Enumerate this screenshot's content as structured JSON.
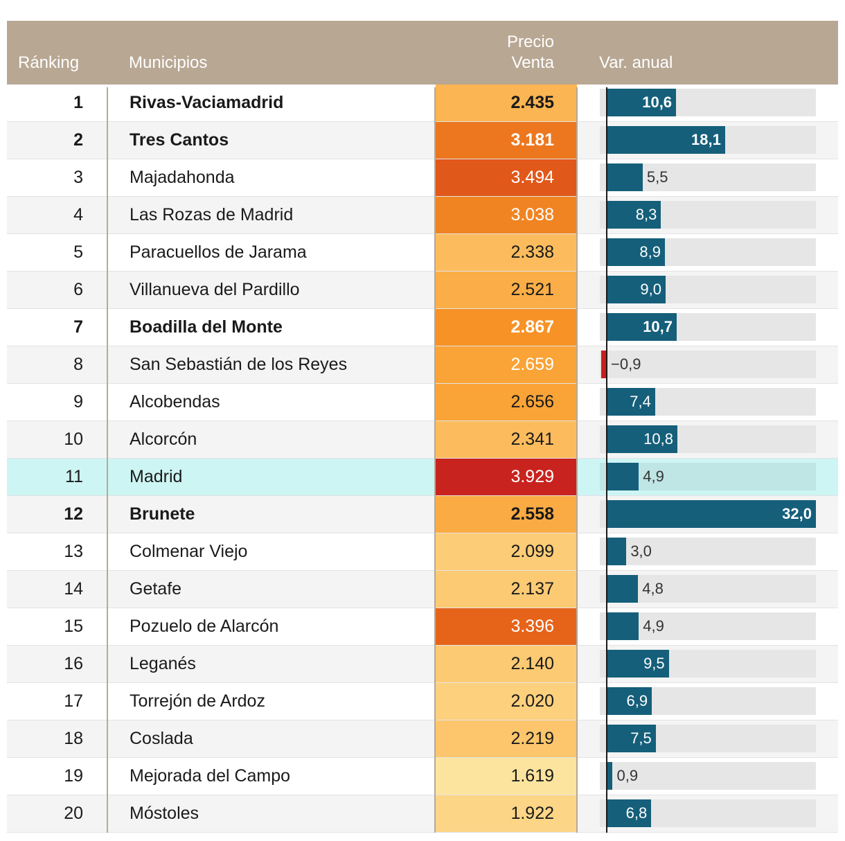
{
  "chart_data": {
    "type": "table",
    "columns": [
      "Ránking",
      "Municipios",
      "Precio\nVenta",
      "Var. anual"
    ],
    "highlight_row": "Madrid",
    "var_range": [
      -1,
      32
    ],
    "rows": [
      {
        "rank": "1",
        "municipio": "Rivas-Vaciamadrid",
        "precio": "2.435",
        "precio_value": 2435,
        "var": "10,6",
        "var_value": 10.6,
        "bold": true
      },
      {
        "rank": "2",
        "municipio": "Tres Cantos",
        "precio": "3.181",
        "precio_value": 3181,
        "var": "18,1",
        "var_value": 18.1,
        "bold": true
      },
      {
        "rank": "3",
        "municipio": "Majadahonda",
        "precio": "3.494",
        "precio_value": 3494,
        "var": "5,5",
        "var_value": 5.5,
        "bold": false
      },
      {
        "rank": "4",
        "municipio": "Las Rozas de Madrid",
        "precio": "3.038",
        "precio_value": 3038,
        "var": "8,3",
        "var_value": 8.3,
        "bold": false
      },
      {
        "rank": "5",
        "municipio": "Paracuellos de Jarama",
        "precio": "2.338",
        "precio_value": 2338,
        "var": "8,9",
        "var_value": 8.9,
        "bold": false
      },
      {
        "rank": "6",
        "municipio": "Villanueva del Pardillo",
        "precio": "2.521",
        "precio_value": 2521,
        "var": "9,0",
        "var_value": 9.0,
        "bold": false
      },
      {
        "rank": "7",
        "municipio": "Boadilla del Monte",
        "precio": "2.867",
        "precio_value": 2867,
        "var": "10,7",
        "var_value": 10.7,
        "bold": true
      },
      {
        "rank": "8",
        "municipio": "San Sebastián de los Reyes",
        "precio": "2.659",
        "precio_value": 2659,
        "var": "−0,9",
        "var_value": -0.9,
        "bold": false
      },
      {
        "rank": "9",
        "municipio": "Alcobendas",
        "precio": "2.656",
        "precio_value": 2656,
        "var": "7,4",
        "var_value": 7.4,
        "bold": false
      },
      {
        "rank": "10",
        "municipio": "Alcorcón",
        "precio": "2.341",
        "precio_value": 2341,
        "var": "10,8",
        "var_value": 10.8,
        "bold": false
      },
      {
        "rank": "11",
        "municipio": "Madrid",
        "precio": "3.929",
        "precio_value": 3929,
        "var": "4,9",
        "var_value": 4.9,
        "bold": false
      },
      {
        "rank": "12",
        "municipio": "Brunete",
        "precio": "2.558",
        "precio_value": 2558,
        "var": "32,0",
        "var_value": 32.0,
        "bold": true
      },
      {
        "rank": "13",
        "municipio": "Colmenar Viejo",
        "precio": "2.099",
        "precio_value": 2099,
        "var": "3,0",
        "var_value": 3.0,
        "bold": false
      },
      {
        "rank": "14",
        "municipio": "Getafe",
        "precio": "2.137",
        "precio_value": 2137,
        "var": "4,8",
        "var_value": 4.8,
        "bold": false
      },
      {
        "rank": "15",
        "municipio": "Pozuelo de Alarcón",
        "precio": "3.396",
        "precio_value": 3396,
        "var": "4,9",
        "var_value": 4.9,
        "bold": false
      },
      {
        "rank": "16",
        "municipio": "Leganés",
        "precio": "2.140",
        "precio_value": 2140,
        "var": "9,5",
        "var_value": 9.5,
        "bold": false
      },
      {
        "rank": "17",
        "municipio": "Torrejón de Ardoz",
        "precio": "2.020",
        "precio_value": 2020,
        "var": "6,9",
        "var_value": 6.9,
        "bold": false
      },
      {
        "rank": "18",
        "municipio": "Coslada",
        "precio": "2.219",
        "precio_value": 2219,
        "var": "7,5",
        "var_value": 7.5,
        "bold": false
      },
      {
        "rank": "19",
        "municipio": "Mejorada del Campo",
        "precio": "1.619",
        "precio_value": 1619,
        "var": "0,9",
        "var_value": 0.9,
        "bold": false
      },
      {
        "rank": "20",
        "municipio": "Móstoles",
        "precio": "1.922",
        "precio_value": 1922,
        "var": "6,8",
        "var_value": 6.8,
        "bold": false
      }
    ]
  },
  "colors": {
    "header_bg": "#b8a793",
    "bar_positive": "#155f7a",
    "bar_negative": "#c8201f",
    "highlight_row_bg": "#cdf5f4",
    "price_scale": [
      "#fde5a0",
      "#fdc870",
      "#f99a28",
      "#e8681a",
      "#c8201f"
    ]
  }
}
